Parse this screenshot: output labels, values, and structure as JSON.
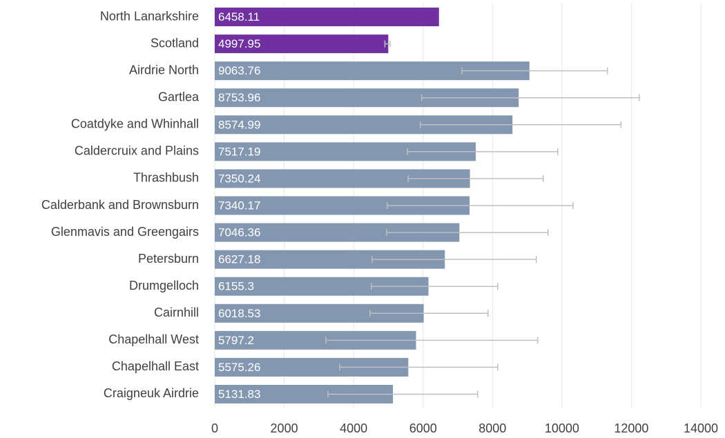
{
  "chart_data": {
    "type": "bar",
    "orientation": "horizontal",
    "categories": [
      "North Lanarkshire",
      "Scotland",
      "Airdrie North",
      "Gartlea",
      "Coatdyke and Whinhall",
      "Caldercruix and Plains",
      "Thrashbush",
      "Calderbank and Brownsburn",
      "Glenmavis and Greengairs",
      "Petersburn",
      "Drumgelloch",
      "Cairnhill",
      "Chapelhall West",
      "Chapelhall East",
      "Craigneuk Airdrie"
    ],
    "series": [
      {
        "values": [
          6458.11,
          4997.95,
          9063.76,
          8753.96,
          8574.99,
          7517.19,
          7350.24,
          7340.17,
          7046.36,
          6627.18,
          6155.3,
          6018.53,
          5797.2,
          5575.26,
          5131.83
        ],
        "colors": [
          "#7030a0",
          "#7030a0",
          "#8497b0",
          "#8497b0",
          "#8497b0",
          "#8497b0",
          "#8497b0",
          "#8497b0",
          "#8497b0",
          "#8497b0",
          "#8497b0",
          "#8497b0",
          "#8497b0",
          "#8497b0",
          "#8497b0"
        ],
        "lower": [
          null,
          4900,
          7120,
          5960,
          5920,
          5550,
          5570,
          4970,
          4950,
          4530,
          4510,
          4470,
          3200,
          3600,
          3260
        ],
        "upper": [
          null,
          5050,
          11310,
          12230,
          11700,
          9880,
          9460,
          10320,
          9600,
          9260,
          8150,
          7870,
          9300,
          8150,
          7570
        ]
      }
    ],
    "xlim": [
      0,
      14000
    ],
    "xticks": [
      0,
      2000,
      4000,
      6000,
      8000,
      10000,
      12000,
      14000
    ],
    "grid": true,
    "error_color": "#bfbfbf"
  }
}
